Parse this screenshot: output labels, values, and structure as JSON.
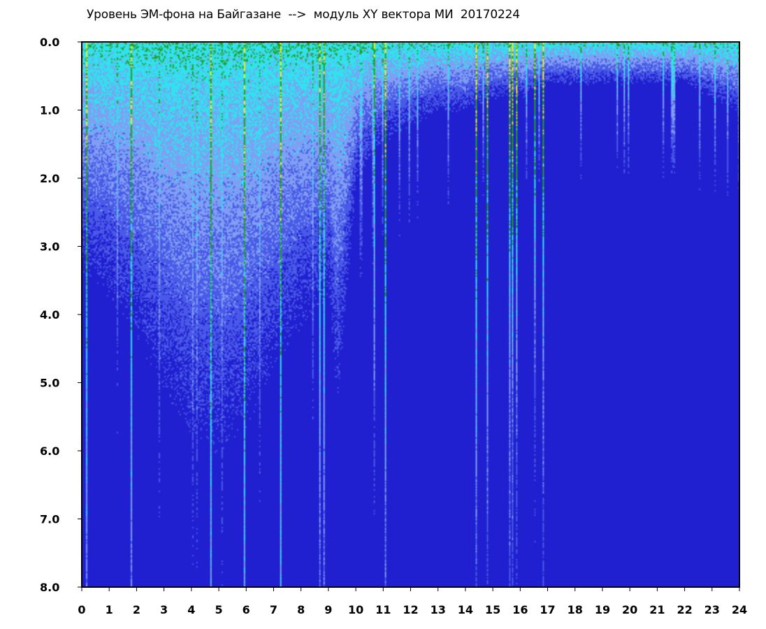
{
  "chart_data": {
    "type": "heatmap",
    "title": "Уровень ЭМ-фона на Байгазане  -->  модуль XY вектора МИ  20170224",
    "xlabel": "",
    "ylabel": "",
    "x_ticks": [
      "0",
      "1",
      "2",
      "3",
      "4",
      "5",
      "6",
      "7",
      "8",
      "9",
      "10",
      "11",
      "12",
      "13",
      "14",
      "15",
      "16",
      "17",
      "18",
      "19",
      "20",
      "21",
      "22",
      "23",
      "24"
    ],
    "y_ticks": [
      "0.0",
      "1.0",
      "2.0",
      "3.0",
      "4.0",
      "5.0",
      "6.0",
      "7.0",
      "8.0"
    ],
    "xlim": [
      0,
      24
    ],
    "ylim": [
      0,
      8
    ],
    "y_inverted": true,
    "grid": false,
    "colormap": [
      "#2020d0",
      "#4a5ae8",
      "#7f9ef4",
      "#33e0ee",
      "#20a020",
      "#f0f020",
      "#f02010"
    ],
    "intensity_profile": {
      "x": [
        0,
        1,
        2,
        3,
        4,
        5,
        6,
        7,
        8,
        9,
        9.3,
        10,
        11,
        12,
        13,
        14,
        15,
        16,
        17,
        18,
        19,
        20,
        21,
        22,
        23,
        24
      ],
      "level_boundary": [
        1.6,
        1.8,
        2.1,
        2.5,
        2.8,
        2.9,
        2.7,
        2.3,
        2.0,
        1.8,
        2.6,
        1.0,
        0.7,
        0.6,
        0.5,
        0.5,
        0.4,
        0.4,
        0.3,
        0.3,
        0.3,
        0.3,
        0.3,
        0.3,
        0.4,
        0.5
      ]
    }
  }
}
